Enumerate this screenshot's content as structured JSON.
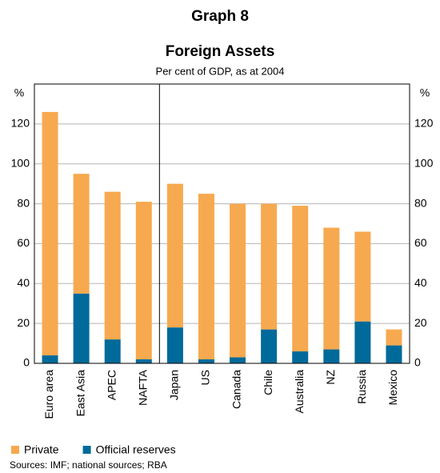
{
  "chart_data": {
    "type": "stacked_bar",
    "title": "Graph 8",
    "subtitle": "Foreign Assets",
    "note": "Per cent of GDP, as at 2004",
    "y_unit": "%",
    "categories": [
      "Euro area",
      "East Asia",
      "APEC",
      "NAFTA",
      "Japan",
      "US",
      "Canada",
      "Chile",
      "Australia",
      "NZ",
      "Russia",
      "Mexico"
    ],
    "series": [
      {
        "name": "Private",
        "color": "#f7a94f",
        "values": [
          122,
          60,
          74,
          79,
          72,
          83,
          77,
          63,
          73,
          61,
          45,
          8
        ]
      },
      {
        "name": "Official reserves",
        "color": "#006a9a",
        "values": [
          4,
          35,
          12,
          2,
          18,
          2,
          3,
          17,
          6,
          7,
          21,
          9
        ]
      }
    ],
    "ylim": [
      0,
      140
    ],
    "yticks": [
      0,
      20,
      40,
      60,
      80,
      100,
      120
    ],
    "grid": true,
    "source": "Sources: IMF; national sources; RBA"
  }
}
